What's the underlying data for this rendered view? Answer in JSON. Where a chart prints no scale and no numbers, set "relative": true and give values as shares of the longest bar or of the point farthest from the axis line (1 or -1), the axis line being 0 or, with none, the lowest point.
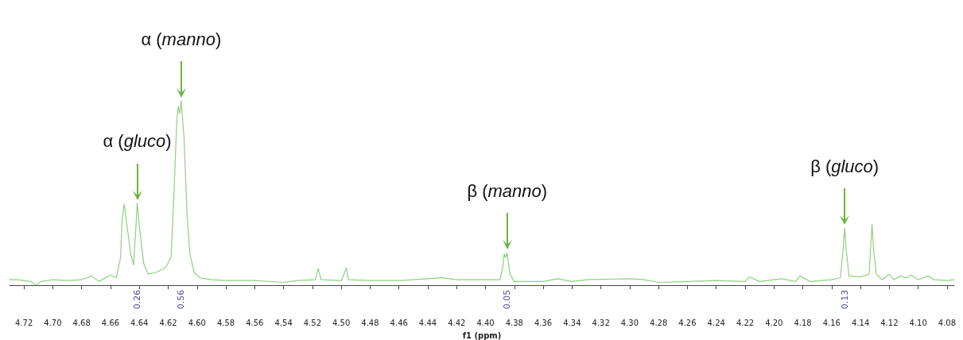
{
  "chart_data": {
    "type": "line",
    "relative": true,
    "xlabel": "f1 (ppm)",
    "color": "#8fcf7f",
    "grid": false,
    "marker": "none",
    "line_style": "solid",
    "xlim": [
      4.73,
      4.075
    ],
    "xticks": [
      4.72,
      {
        "value": 4.7,
        "label": "4.70"
      },
      4.68,
      4.66,
      4.64,
      4.62,
      {
        "value": 4.6,
        "label": "4.60"
      },
      4.58,
      4.56,
      4.54,
      4.52,
      {
        "value": 4.5,
        "label": "4.50"
      },
      4.48,
      4.46,
      4.44,
      4.42,
      {
        "value": 4.4,
        "label": "4.40"
      },
      4.38,
      4.36,
      4.34,
      4.32,
      {
        "value": 4.3,
        "label": "4.30"
      },
      4.28,
      4.26,
      4.24,
      4.22,
      {
        "value": 4.2,
        "label": "4.20"
      },
      4.18,
      4.16,
      4.14,
      4.12,
      {
        "value": 4.1,
        "label": "4.10"
      },
      4.08
    ],
    "x": [
      4.73,
      4.725,
      4.72,
      4.715,
      4.712,
      4.708,
      4.7,
      4.69,
      4.68,
      4.673,
      4.668,
      4.66,
      4.656,
      4.653,
      4.652,
      4.6505,
      4.649,
      4.646,
      4.644,
      4.6425,
      4.6415,
      4.64,
      4.637,
      4.634,
      4.628,
      4.622,
      4.618,
      4.616,
      4.614,
      4.613,
      4.612,
      4.611,
      4.609,
      4.607,
      4.605,
      4.602,
      4.598,
      4.59,
      4.58,
      4.56,
      4.54,
      4.53,
      4.518,
      4.516,
      4.514,
      4.5,
      4.4965,
      4.495,
      4.48,
      4.46,
      4.43,
      4.42,
      4.4,
      4.39,
      4.388,
      4.387,
      4.386,
      4.385,
      4.383,
      4.38,
      4.36,
      4.35,
      4.34,
      4.33,
      4.3,
      4.29,
      4.28,
      4.26,
      4.24,
      4.22,
      4.217,
      4.21,
      4.195,
      4.185,
      4.182,
      4.175,
      4.16,
      4.154,
      4.152,
      4.151,
      4.15,
      4.148,
      4.14,
      4.134,
      4.133,
      4.132,
      4.131,
      4.129,
      4.125,
      4.12,
      4.117,
      4.112,
      4.108,
      4.105,
      4.1,
      4.093,
      4.089,
      4.08,
      4.075
    ],
    "values": [
      0.03,
      0.03,
      0.025,
      0.02,
      0.0,
      0.02,
      0.03,
      0.025,
      0.03,
      0.05,
      0.02,
      0.055,
      0.04,
      0.15,
      0.35,
      0.44,
      0.35,
      0.17,
      0.11,
      0.3,
      0.445,
      0.32,
      0.12,
      0.06,
      0.07,
      0.095,
      0.15,
      0.5,
      0.9,
      0.97,
      0.93,
      1.0,
      0.8,
      0.4,
      0.17,
      0.07,
      0.04,
      0.03,
      0.025,
      0.025,
      0.015,
      0.025,
      0.03,
      0.09,
      0.03,
      0.025,
      0.092,
      0.03,
      0.025,
      0.025,
      0.04,
      0.03,
      0.03,
      0.03,
      0.1,
      0.17,
      0.15,
      0.175,
      0.06,
      0.02,
      0.02,
      0.035,
      0.02,
      0.03,
      0.035,
      0.03,
      0.015,
      0.02,
      0.025,
      0.02,
      0.045,
      0.02,
      0.035,
      0.02,
      0.05,
      0.02,
      0.03,
      0.04,
      0.2,
      0.31,
      0.2,
      0.05,
      0.045,
      0.06,
      0.2,
      0.33,
      0.2,
      0.06,
      0.03,
      0.06,
      0.03,
      0.05,
      0.04,
      0.055,
      0.03,
      0.05,
      0.03,
      0.025,
      0.03
    ],
    "annotations": [
      {
        "text": "α (gluco)",
        "x": 4.6415,
        "y": 0.445
      },
      {
        "text": "α (manno)",
        "x": 4.611,
        "y": 1.0
      },
      {
        "text": "β (manno)",
        "x": 4.385,
        "y": 0.175
      },
      {
        "text": "β (gluco)",
        "x": 4.151,
        "y": 0.31
      },
      "0.26",
      "0.56",
      "0.05",
      "0.13"
    ]
  }
}
